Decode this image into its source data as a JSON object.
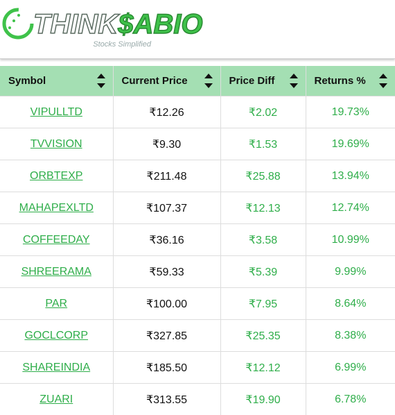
{
  "header": {
    "logo": "THINK$ABIO",
    "tagline": "Stocks Simplified"
  },
  "table": {
    "columns": [
      "Symbol",
      "Current Price",
      "Price Diff",
      "Returns %"
    ],
    "rows": [
      [
        "VIPULLTD",
        "₹12.26",
        "₹2.02",
        "19.73%"
      ],
      [
        "TVVISION",
        "₹9.30",
        "₹1.53",
        "19.69%"
      ],
      [
        "ORBTEXP",
        "₹211.48",
        "₹25.88",
        "13.94%"
      ],
      [
        "MAHAPEXLTD",
        "₹107.37",
        "₹12.13",
        "12.74%"
      ],
      [
        "COFFEEDAY",
        "₹36.16",
        "₹3.58",
        "10.99%"
      ],
      [
        "SHREERAMA",
        "₹59.33",
        "₹5.39",
        "9.99%"
      ],
      [
        "PAR",
        "₹100.00",
        "₹7.95",
        "8.64%"
      ],
      [
        "GOCLCORP",
        "₹327.85",
        "₹25.35",
        "8.38%"
      ],
      [
        "SHAREINDIA",
        "₹185.50",
        "₹12.12",
        "6.99%"
      ],
      [
        "ZUARI",
        "₹313.55",
        "₹19.90",
        "6.78%"
      ]
    ]
  }
}
